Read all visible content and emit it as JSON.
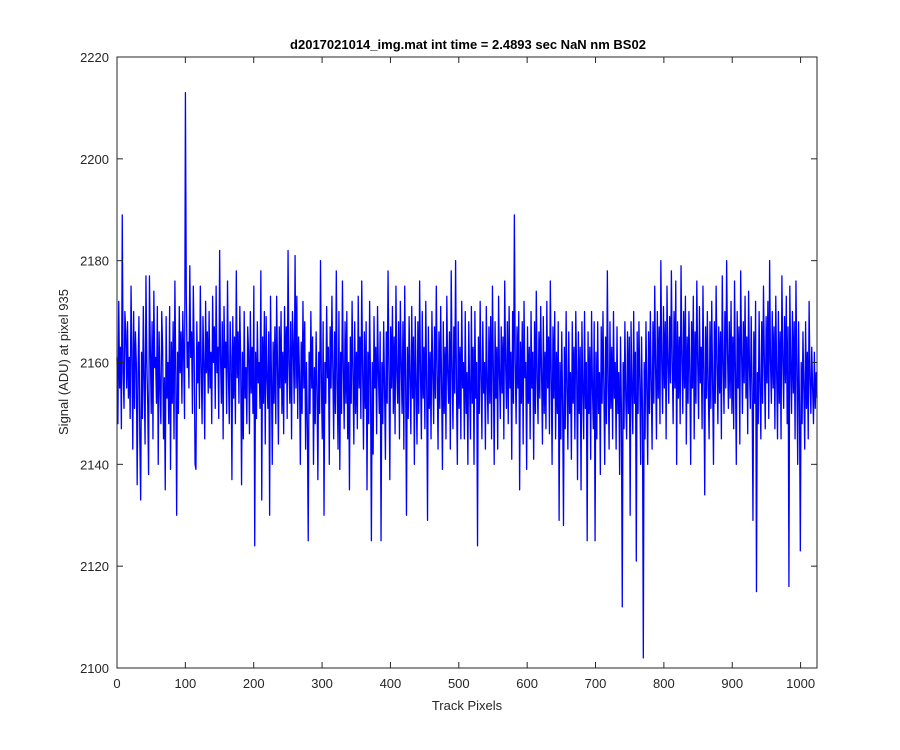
{
  "chart_data": {
    "type": "line",
    "title": "d2017021014_img.mat int time = 2.4893 sec  NaN nm BS02",
    "xlabel": "Track Pixels",
    "ylabel": "Signal (ADU) at pixel 935",
    "xlim": [
      0,
      1024
    ],
    "ylim": [
      2100,
      2220
    ],
    "xticks": [
      "0",
      "100",
      "200",
      "300",
      "400",
      "500",
      "600",
      "700",
      "800",
      "900",
      "1000"
    ],
    "yticks": [
      "2100",
      "2120",
      "2140",
      "2160",
      "2180",
      "2200",
      "2220"
    ],
    "grid": false,
    "series": [
      {
        "color": "#0000ff",
        "x_start": 1,
        "x_step": 1,
        "note_points": "1024 noisy samples; representative values",
        "values": [
          2161,
          2148,
          2172,
          2155,
          2163,
          2147,
          2189,
          2158,
          2151,
          2170,
          2166,
          2155,
          2168,
          2153,
          2161,
          2149,
          2175,
          2162,
          2143,
          2170,
          2151,
          2166,
          2160,
          2136,
          2158,
          2169,
          2145,
          2133,
          2162,
          2149,
          2171,
          2156,
          2144,
          2177,
          2160,
          2152,
          2138,
          2177,
          2163,
          2150,
          2168,
          2145,
          2174,
          2159,
          2161,
          2152,
          2171,
          2140,
          2166,
          2155,
          2148,
          2170,
          2163,
          2145,
          2157,
          2135,
          2169,
          2153,
          2160,
          2148,
          2171,
          2139,
          2164,
          2152,
          2168,
          2145,
          2176,
          2158,
          2130,
          2162,
          2150,
          2171,
          2158,
          2166,
          2152,
          2170,
          2161,
          2149,
          2213,
          2173,
          2159,
          2164,
          2155,
          2179,
          2161,
          2166,
          2150,
          2175,
          2162,
          2140,
          2139,
          2168,
          2156,
          2164,
          2151,
          2175,
          2159,
          2148,
          2169,
          2160,
          2145,
          2172,
          2158,
          2166,
          2154,
          2170,
          2155,
          2162,
          2148,
          2173,
          2160,
          2167,
          2151,
          2175,
          2158,
          2163,
          2149,
          2182,
          2161,
          2152,
          2168,
          2145,
          2171,
          2159,
          2164,
          2150,
          2176,
          2158,
          2148,
          2168,
          2161,
          2137,
          2169,
          2153,
          2165,
          2148,
          2178,
          2157,
          2166,
          2152,
          2171,
          2160,
          2136,
          2162,
          2145,
          2170,
          2153,
          2159,
          2148,
          2167,
          2162,
          2146,
          2170,
          2154,
          2163,
          2150,
          2175,
          2124,
          2162,
          2149,
          2168,
          2156,
          2160,
          2151,
          2178,
          2133,
          2165,
          2152,
          2170,
          2144,
          2169,
          2157,
          2151,
          2166,
          2130,
          2173,
          2158,
          2140,
          2164,
          2152,
          2167,
          2148,
          2173,
          2159,
          2144,
          2167,
          2155,
          2170,
          2150,
          2162,
          2146,
          2171,
          2156,
          2167,
          2149,
          2182,
          2160,
          2152,
          2168,
          2145,
          2170,
          2163,
          2152,
          2181,
          2155,
          2173,
          2149,
          2165,
          2158,
          2140,
          2164,
          2150,
          2172,
          2155,
          2168,
          2143,
          2160,
          2148,
          2125,
          2162,
          2150,
          2170,
          2155,
          2165,
          2140,
          2159,
          2148,
          2166,
          2155,
          2137,
          2162,
          2150,
          2180,
          2156,
          2145,
          2168,
          2130,
          2160,
          2152,
          2171,
          2157,
          2163,
          2140,
          2167,
          2155,
          2173,
          2159,
          2145,
          2166,
          2150,
          2178,
          2156,
          2143,
          2170,
          2139,
          2162,
          2150,
          2176,
          2159,
          2147,
          2168,
          2152,
          2170,
          2145,
          2160,
          2135,
          2165,
          2152,
          2172,
          2158,
          2144,
          2168,
          2150,
          2162,
          2147,
          2173,
          2155,
          2165,
          2149,
          2176,
          2159,
          2143,
          2166,
          2151,
          2168,
          2135,
          2162,
          2148,
          2172,
          2156,
          2125,
          2160,
          2142,
          2169,
          2155,
          2163,
          2146,
          2171,
          2158,
          2150,
          2166,
          2125,
          2160,
          2148,
          2168,
          2155,
          2141,
          2166,
          2152,
          2178,
          2159,
          2137,
          2167,
          2155,
          2171,
          2150,
          2165,
          2146,
          2175,
          2158,
          2152,
          2168,
          2145,
          2172,
          2160,
          2150,
          2168,
          2143,
          2175,
          2157,
          2130,
          2163,
          2149,
          2169,
          2157,
          2146,
          2171,
          2153,
          2165,
          2140,
          2169,
          2156,
          2144,
          2168,
          2150,
          2176,
          2158,
          2145,
          2170,
          2153,
          2163,
          2147,
          2172,
          2156,
          2129,
          2167,
          2151,
          2162,
          2145,
          2170,
          2158,
          2148,
          2167,
          2153,
          2175,
          2158,
          2143,
          2166,
          2151,
          2171,
          2156,
          2139,
          2168,
          2150,
          2163,
          2145,
          2173,
          2158,
          2152,
          2166,
          2143,
          2178,
          2159,
          2147,
          2167,
          2154,
          2180,
          2155,
          2140,
          2168,
          2151,
          2163,
          2145,
          2172,
          2155,
          2160,
          2145,
          2170,
          2150,
          2158,
          2140,
          2168,
          2155,
          2145,
          2171,
          2152,
          2163,
          2140,
          2170,
          2153,
          2160,
          2124,
          2165,
          2150,
          2172,
          2157,
          2145,
          2168,
          2154,
          2160,
          2143,
          2171,
          2156,
          2148,
          2167,
          2152,
          2169,
          2145,
          2175,
          2159,
          2140,
          2168,
          2153,
          2163,
          2143,
          2173,
          2158,
          2149,
          2167,
          2154,
          2165,
          2145,
          2176,
          2160,
          2151,
          2168,
          2148,
          2171,
          2155,
          2162,
          2141,
          2170,
          2152,
          2189,
          2160,
          2148,
          2167,
          2155,
          2170,
          2135,
          2164,
          2152,
          2168,
          2144,
          2172,
          2157,
          2160,
          2139,
          2167,
          2152,
          2163,
          2145,
          2170,
          2155,
          2162,
          2141,
          2168,
          2150,
          2174,
          2157,
          2148,
          2166,
          2153,
          2171,
          2158,
          2144,
          2169,
          2150,
          2162,
          2147,
          2172,
          2155,
          2165,
          2146,
          2176,
          2158,
          2140,
          2167,
          2153,
          2170,
          2145,
          2162,
          2150,
          2168,
          2129,
          2160,
          2145,
          2166,
          2152,
          2128,
          2163,
          2147,
          2170,
          2155,
          2143,
          2166,
          2150,
          2158,
          2141,
          2168,
          2152,
          2163,
          2145,
          2170,
          2158,
          2137,
          2166,
          2150,
          2163,
          2135,
          2168,
          2155,
          2145,
          2170,
          2151,
          2160,
          2125,
          2166,
          2150,
          2163,
          2141,
          2170,
          2155,
          2147,
          2168,
          2125,
          2162,
          2145,
          2168,
          2150,
          2158,
          2138,
          2167,
          2152,
          2170,
          2155,
          2140,
          2165,
          2148,
          2178,
          2156,
          2143,
          2168,
          2151,
          2163,
          2145,
          2170,
          2153,
          2160,
          2143,
          2167,
          2150,
          2158,
          2138,
          2165,
          2151,
          2112,
          2160,
          2147,
          2168,
          2153,
          2145,
          2166,
          2150,
          2165,
          2130,
          2168,
          2155,
          2146,
          2170,
          2152,
          2162,
          2121,
          2166,
          2150,
          2168,
          2156,
          2140,
          2165,
          2151,
          2102,
          2160,
          2145,
          2168,
          2155,
          2140,
          2166,
          2150,
          2170,
          2156,
          2143,
          2168,
          2152,
          2175,
          2159,
          2145,
          2170,
          2153,
          2167,
          2148,
          2180,
          2160,
          2150,
          2171,
          2155,
          2168,
          2145,
          2175,
          2160,
          2152,
          2169,
          2156,
          2178,
          2160,
          2148,
          2170,
          2155,
          2176,
          2140,
          2168,
          2153,
          2165,
          2148,
          2179,
          2161,
          2150,
          2170,
          2155,
          2173,
          2144,
          2165,
          2152,
          2170,
          2158,
          2140,
          2168,
          2155,
          2173,
          2145,
          2166,
          2152,
          2176,
          2160,
          2149,
          2171,
          2156,
          2163,
          2147,
          2175,
          2158,
          2134,
          2167,
          2153,
          2170,
          2155,
          2145,
          2168,
          2151,
          2172,
          2156,
          2140,
          2168,
          2152,
          2175,
          2160,
          2148,
          2167,
          2154,
          2166,
          2145,
          2177,
          2160,
          2150,
          2170,
          2155,
          2180,
          2162,
          2151,
          2168,
          2153,
          2172,
          2150,
          2165,
          2147,
          2176,
          2158,
          2140,
          2170,
          2155,
          2167,
          2144,
          2178,
          2162,
          2150,
          2168,
          2156,
          2173,
          2153,
          2165,
          2146,
          2174,
          2159,
          2151,
          2169,
          2155,
          2129,
          2166,
          2152,
          2172,
          2115,
          2158,
          2148,
          2170,
          2155,
          2145,
          2168,
          2152,
          2175,
          2160,
          2147,
          2169,
          2156,
          2172,
          2149,
          2180,
          2160,
          2152,
          2170,
          2155,
          2167,
          2147,
          2173,
          2158,
          2145,
          2170,
          2152,
          2166,
          2145,
          2177,
          2161,
          2151,
          2169,
          2156,
          2173,
          2148,
          2167,
          2116,
          2175,
          2160,
          2150,
          2170,
          2154,
          2168,
          2145,
          2176,
          2159,
          2140,
          2168,
          2152,
          2123,
          2160,
          2148,
          2166,
          2155,
          2143,
          2168,
          2151,
          2162,
          2145,
          2172,
          2157,
          2150,
          2163,
          2155,
          2148,
          2162,
          2151,
          2158,
          2153
        ]
      }
    ]
  }
}
